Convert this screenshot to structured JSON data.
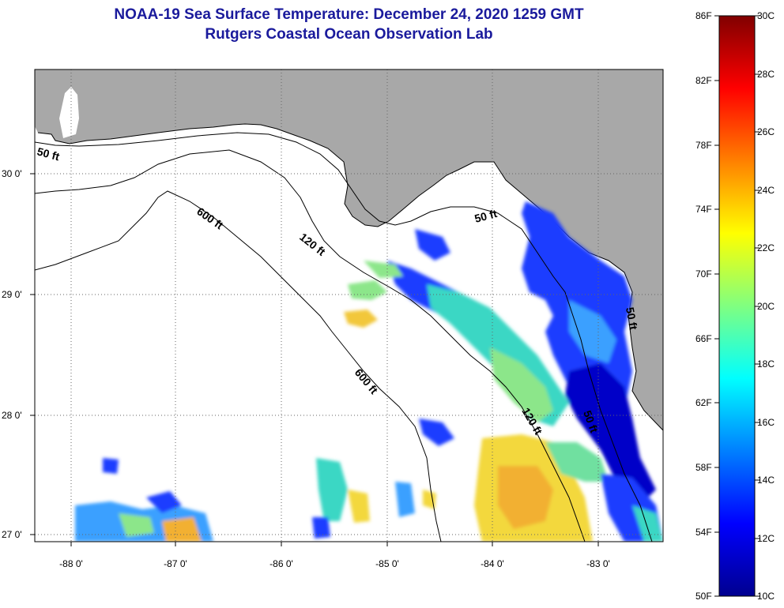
{
  "title": "NOAA-19 Sea Surface Temperature:  December 24, 2020 1259 GMT",
  "subtitle": "Rutgers Coastal Ocean Observation Lab",
  "axes": {
    "longitude_ticks": [
      "-88 0'",
      "-87 0'",
      "-86 0'",
      "-85 0'",
      "-84 0'",
      "-83 0'"
    ],
    "latitude_ticks": [
      "30 0'",
      "29 0'",
      "28 0'",
      "27 0'"
    ]
  },
  "contour_labels": [
    "50 ft",
    "50 ft",
    "600 ft",
    "120 ft",
    "600 ft",
    "120 ft",
    "50 ft",
    "50 ft"
  ],
  "colorbar": {
    "fahrenheit_labels": [
      "86F",
      "82F",
      "78F",
      "74F",
      "70F",
      "66F",
      "62F",
      "58F",
      "54F",
      "50F"
    ],
    "celsius_labels": [
      "30C",
      "28C",
      "26C",
      "24C",
      "22C",
      "20C",
      "18C",
      "16C",
      "14C",
      "12C",
      "10C"
    ],
    "colors": [
      "#00008f",
      "#0000ff",
      "#0080ff",
      "#00ffff",
      "#80ff80",
      "#ffff00",
      "#ff8000",
      "#ff0000",
      "#800000"
    ]
  },
  "colors": {
    "land": "#a8a8a8",
    "title": "#1a1a9c"
  }
}
